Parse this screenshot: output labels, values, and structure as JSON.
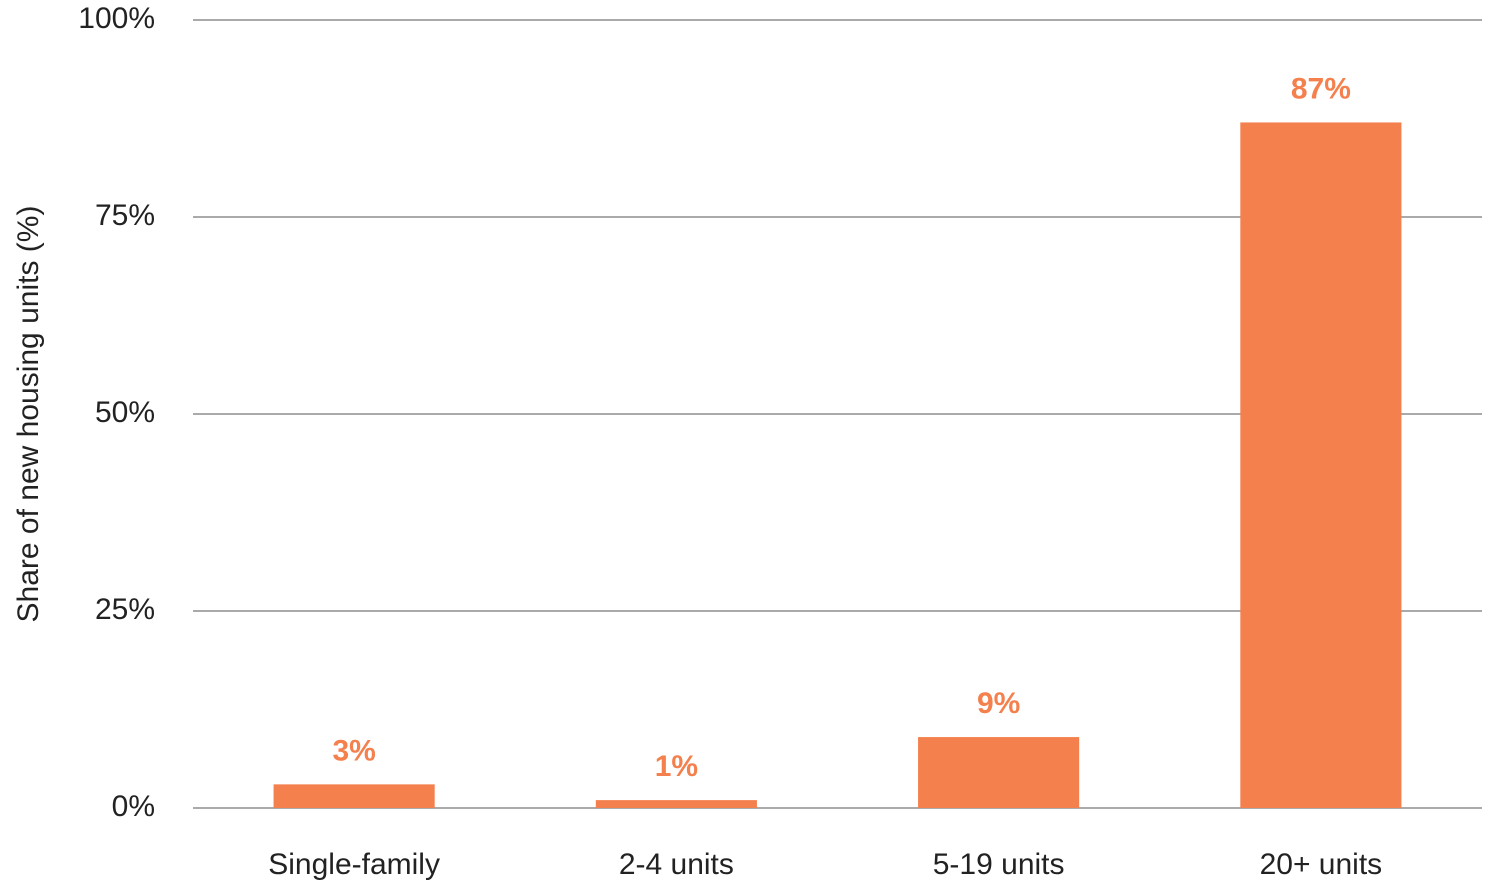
{
  "chart_data": {
    "type": "bar",
    "y_label": "Share of new housing units (%)",
    "categories": [
      "Single-family",
      "2-4 units",
      "5-19 units",
      "20+ units"
    ],
    "values": [
      3,
      1,
      9,
      87
    ],
    "value_labels": [
      "3%",
      "1%",
      "9%",
      "87%"
    ],
    "color": "#f4804d",
    "ylim": [
      0,
      100
    ],
    "yticks": [
      {
        "value": 0,
        "label": "0%"
      },
      {
        "value": 25,
        "label": "25%"
      },
      {
        "value": 50,
        "label": "50%"
      },
      {
        "value": 75,
        "label": "75%"
      },
      {
        "value": 100,
        "label": "100%"
      }
    ],
    "grid": true
  }
}
